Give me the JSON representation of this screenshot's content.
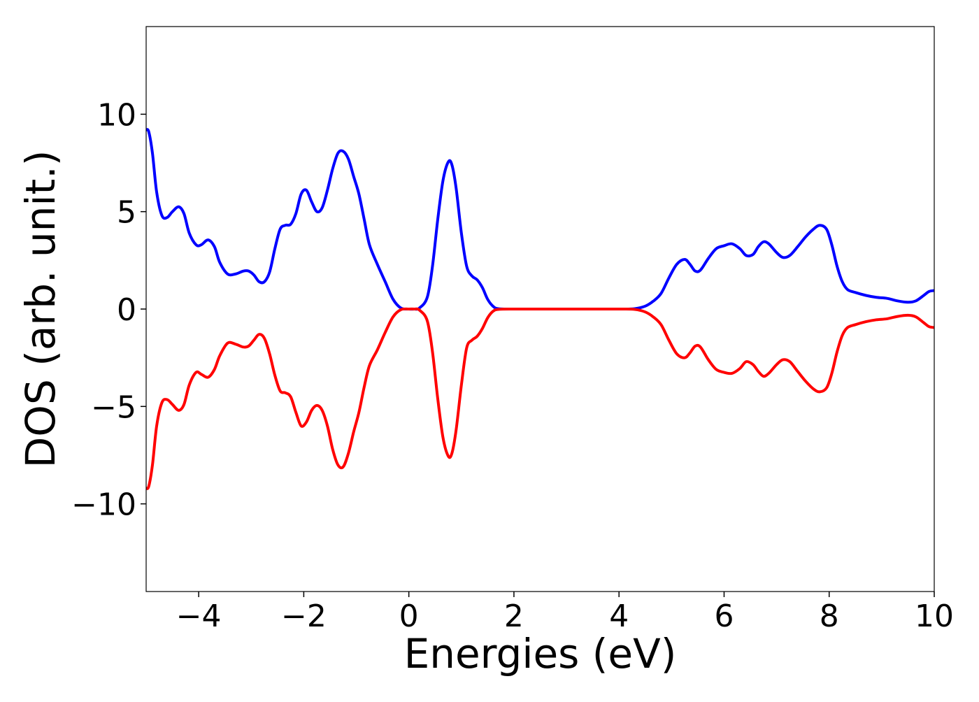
{
  "chart_data": {
    "type": "line",
    "title": "",
    "xlabel": "Energies (eV)",
    "ylabel": "DOS (arb. unit.)",
    "xlim": [
      -5,
      10
    ],
    "ylim": [
      -14.5,
      14.5
    ],
    "grid": false,
    "legend": "none",
    "x_ticks": [
      -4,
      -2,
      0,
      2,
      4,
      6,
      8,
      10
    ],
    "x_tick_labels": [
      "−4",
      "−2",
      "0",
      "2",
      "4",
      "6",
      "8",
      "10"
    ],
    "y_ticks": [
      10,
      5,
      0,
      -5,
      -10
    ],
    "y_tick_labels": [
      "10",
      "5",
      "0",
      "−5",
      "−10"
    ],
    "series": [
      {
        "color": "#0000ff",
        "points": [
          [
            -5.0,
            9.2
          ],
          [
            -4.95,
            9.1
          ],
          [
            -4.88,
            8.0
          ],
          [
            -4.8,
            6.0
          ],
          [
            -4.7,
            4.8
          ],
          [
            -4.6,
            4.7
          ],
          [
            -4.5,
            5.0
          ],
          [
            -4.38,
            5.25
          ],
          [
            -4.28,
            4.9
          ],
          [
            -4.18,
            3.9
          ],
          [
            -4.05,
            3.3
          ],
          [
            -3.95,
            3.3
          ],
          [
            -3.82,
            3.55
          ],
          [
            -3.7,
            3.2
          ],
          [
            -3.6,
            2.4
          ],
          [
            -3.45,
            1.8
          ],
          [
            -3.3,
            1.8
          ],
          [
            -3.15,
            1.95
          ],
          [
            -3.05,
            1.95
          ],
          [
            -2.95,
            1.75
          ],
          [
            -2.85,
            1.4
          ],
          [
            -2.75,
            1.4
          ],
          [
            -2.65,
            1.9
          ],
          [
            -2.55,
            3.1
          ],
          [
            -2.45,
            4.1
          ],
          [
            -2.35,
            4.3
          ],
          [
            -2.25,
            4.35
          ],
          [
            -2.15,
            4.9
          ],
          [
            -2.05,
            5.9
          ],
          [
            -1.95,
            6.1
          ],
          [
            -1.85,
            5.5
          ],
          [
            -1.75,
            5.0
          ],
          [
            -1.65,
            5.2
          ],
          [
            -1.55,
            6.1
          ],
          [
            -1.45,
            7.2
          ],
          [
            -1.35,
            8.0
          ],
          [
            -1.25,
            8.1
          ],
          [
            -1.15,
            7.7
          ],
          [
            -1.05,
            6.8
          ],
          [
            -0.95,
            5.9
          ],
          [
            -0.85,
            4.6
          ],
          [
            -0.75,
            3.3
          ],
          [
            -0.6,
            2.3
          ],
          [
            -0.45,
            1.4
          ],
          [
            -0.3,
            0.5
          ],
          [
            -0.15,
            0.05
          ],
          [
            0.0,
            0.0
          ],
          [
            0.1,
            0.0
          ],
          [
            0.2,
            0.05
          ],
          [
            0.35,
            0.6
          ],
          [
            0.45,
            2.2
          ],
          [
            0.55,
            4.6
          ],
          [
            0.65,
            6.6
          ],
          [
            0.75,
            7.55
          ],
          [
            0.82,
            7.4
          ],
          [
            0.9,
            6.2
          ],
          [
            1.0,
            3.9
          ],
          [
            1.1,
            2.2
          ],
          [
            1.2,
            1.7
          ],
          [
            1.3,
            1.5
          ],
          [
            1.4,
            1.1
          ],
          [
            1.5,
            0.5
          ],
          [
            1.6,
            0.15
          ],
          [
            1.7,
            0.02
          ],
          [
            2.0,
            0.0
          ],
          [
            3.0,
            0.0
          ],
          [
            4.0,
            0.0
          ],
          [
            4.3,
            0.02
          ],
          [
            4.5,
            0.15
          ],
          [
            4.65,
            0.4
          ],
          [
            4.8,
            0.8
          ],
          [
            4.95,
            1.6
          ],
          [
            5.1,
            2.3
          ],
          [
            5.25,
            2.55
          ],
          [
            5.35,
            2.3
          ],
          [
            5.45,
            1.95
          ],
          [
            5.55,
            2.0
          ],
          [
            5.7,
            2.6
          ],
          [
            5.85,
            3.1
          ],
          [
            6.0,
            3.25
          ],
          [
            6.15,
            3.35
          ],
          [
            6.3,
            3.1
          ],
          [
            6.42,
            2.75
          ],
          [
            6.55,
            2.8
          ],
          [
            6.65,
            3.2
          ],
          [
            6.75,
            3.45
          ],
          [
            6.85,
            3.35
          ],
          [
            7.0,
            2.9
          ],
          [
            7.12,
            2.65
          ],
          [
            7.25,
            2.75
          ],
          [
            7.4,
            3.2
          ],
          [
            7.55,
            3.7
          ],
          [
            7.7,
            4.1
          ],
          [
            7.82,
            4.3
          ],
          [
            7.95,
            4.1
          ],
          [
            8.05,
            3.3
          ],
          [
            8.15,
            2.2
          ],
          [
            8.25,
            1.4
          ],
          [
            8.35,
            1.0
          ],
          [
            8.5,
            0.85
          ],
          [
            8.7,
            0.7
          ],
          [
            8.9,
            0.6
          ],
          [
            9.1,
            0.55
          ],
          [
            9.3,
            0.42
          ],
          [
            9.5,
            0.35
          ],
          [
            9.65,
            0.42
          ],
          [
            9.8,
            0.7
          ],
          [
            9.9,
            0.9
          ],
          [
            10.0,
            0.95
          ]
        ]
      },
      {
        "color": "#ff0000",
        "points": [
          [
            -5.0,
            -9.2
          ],
          [
            -4.95,
            -9.1
          ],
          [
            -4.88,
            -8.0
          ],
          [
            -4.8,
            -6.0
          ],
          [
            -4.7,
            -4.8
          ],
          [
            -4.6,
            -4.65
          ],
          [
            -4.5,
            -4.9
          ],
          [
            -4.38,
            -5.2
          ],
          [
            -4.28,
            -4.9
          ],
          [
            -4.18,
            -3.9
          ],
          [
            -4.05,
            -3.25
          ],
          [
            -3.95,
            -3.35
          ],
          [
            -3.82,
            -3.5
          ],
          [
            -3.7,
            -3.1
          ],
          [
            -3.6,
            -2.4
          ],
          [
            -3.45,
            -1.75
          ],
          [
            -3.3,
            -1.8
          ],
          [
            -3.15,
            -1.95
          ],
          [
            -3.05,
            -1.9
          ],
          [
            -2.95,
            -1.6
          ],
          [
            -2.85,
            -1.3
          ],
          [
            -2.75,
            -1.5
          ],
          [
            -2.65,
            -2.3
          ],
          [
            -2.55,
            -3.4
          ],
          [
            -2.45,
            -4.2
          ],
          [
            -2.35,
            -4.3
          ],
          [
            -2.25,
            -4.5
          ],
          [
            -2.15,
            -5.3
          ],
          [
            -2.05,
            -6.0
          ],
          [
            -1.95,
            -5.8
          ],
          [
            -1.85,
            -5.2
          ],
          [
            -1.75,
            -4.95
          ],
          [
            -1.65,
            -5.2
          ],
          [
            -1.55,
            -6.0
          ],
          [
            -1.45,
            -7.2
          ],
          [
            -1.35,
            -8.0
          ],
          [
            -1.25,
            -8.1
          ],
          [
            -1.15,
            -7.4
          ],
          [
            -1.05,
            -6.3
          ],
          [
            -0.95,
            -5.3
          ],
          [
            -0.85,
            -4.0
          ],
          [
            -0.75,
            -2.9
          ],
          [
            -0.6,
            -2.1
          ],
          [
            -0.45,
            -1.2
          ],
          [
            -0.3,
            -0.4
          ],
          [
            -0.15,
            -0.03
          ],
          [
            0.0,
            0.0
          ],
          [
            0.1,
            0.0
          ],
          [
            0.2,
            -0.05
          ],
          [
            0.35,
            -0.6
          ],
          [
            0.45,
            -2.2
          ],
          [
            0.55,
            -4.6
          ],
          [
            0.65,
            -6.6
          ],
          [
            0.75,
            -7.55
          ],
          [
            0.82,
            -7.4
          ],
          [
            0.9,
            -6.2
          ],
          [
            1.0,
            -3.9
          ],
          [
            1.1,
            -2.0
          ],
          [
            1.2,
            -1.6
          ],
          [
            1.3,
            -1.4
          ],
          [
            1.4,
            -1.0
          ],
          [
            1.5,
            -0.45
          ],
          [
            1.6,
            -0.12
          ],
          [
            1.7,
            -0.02
          ],
          [
            2.0,
            0.0
          ],
          [
            3.0,
            0.0
          ],
          [
            4.0,
            0.0
          ],
          [
            4.3,
            -0.02
          ],
          [
            4.5,
            -0.15
          ],
          [
            4.65,
            -0.4
          ],
          [
            4.8,
            -0.8
          ],
          [
            4.95,
            -1.6
          ],
          [
            5.1,
            -2.3
          ],
          [
            5.25,
            -2.5
          ],
          [
            5.35,
            -2.25
          ],
          [
            5.45,
            -1.9
          ],
          [
            5.55,
            -1.95
          ],
          [
            5.7,
            -2.6
          ],
          [
            5.85,
            -3.1
          ],
          [
            6.0,
            -3.25
          ],
          [
            6.15,
            -3.3
          ],
          [
            6.3,
            -3.05
          ],
          [
            6.42,
            -2.7
          ],
          [
            6.55,
            -2.85
          ],
          [
            6.65,
            -3.2
          ],
          [
            6.75,
            -3.45
          ],
          [
            6.85,
            -3.3
          ],
          [
            7.0,
            -2.85
          ],
          [
            7.12,
            -2.6
          ],
          [
            7.25,
            -2.7
          ],
          [
            7.4,
            -3.2
          ],
          [
            7.55,
            -3.7
          ],
          [
            7.7,
            -4.1
          ],
          [
            7.82,
            -4.25
          ],
          [
            7.95,
            -4.05
          ],
          [
            8.05,
            -3.3
          ],
          [
            8.15,
            -2.2
          ],
          [
            8.25,
            -1.35
          ],
          [
            8.35,
            -0.95
          ],
          [
            8.5,
            -0.8
          ],
          [
            8.7,
            -0.65
          ],
          [
            8.9,
            -0.55
          ],
          [
            9.1,
            -0.5
          ],
          [
            9.3,
            -0.38
          ],
          [
            9.5,
            -0.32
          ],
          [
            9.65,
            -0.4
          ],
          [
            9.8,
            -0.7
          ],
          [
            9.9,
            -0.9
          ],
          [
            10.0,
            -0.95
          ]
        ]
      }
    ]
  }
}
